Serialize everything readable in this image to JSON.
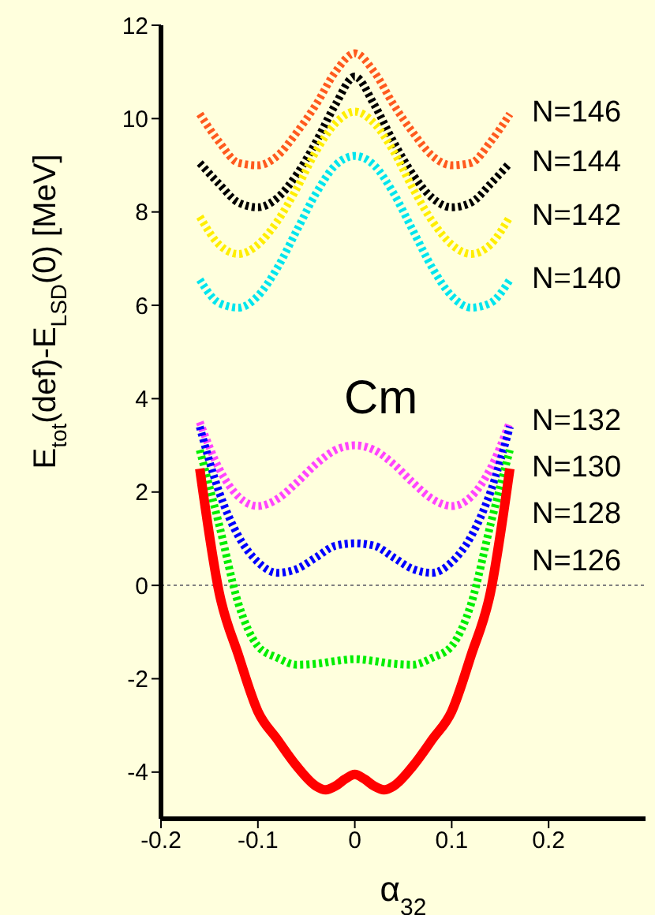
{
  "chart_data": {
    "type": "line",
    "xlabel": "α$_{32}$",
    "ylabel": "E$_{tot}$(def)-E$_{LSD}$(0) [MeV]",
    "annotations": [
      "Cm"
    ],
    "x": [
      -0.16,
      -0.14,
      -0.12,
      -0.1,
      -0.08,
      -0.06,
      -0.04,
      -0.02,
      0,
      0.02,
      0.04,
      0.06,
      0.08,
      0.1,
      0.12,
      0.14,
      0.16
    ],
    "series": [
      {
        "name": "N=146",
        "color": "#ff5a1e",
        "line_style": "dotted",
        "values": [
          10.1,
          9.5,
          9.05,
          9.0,
          9.2,
          9.7,
          10.3,
          11.0,
          11.4,
          11.0,
          10.3,
          9.7,
          9.2,
          9.0,
          9.05,
          9.5,
          10.1
        ]
      },
      {
        "name": "N=144",
        "color": "#000000",
        "line_style": "dotted",
        "values": [
          9.05,
          8.6,
          8.2,
          8.1,
          8.3,
          8.8,
          9.5,
          10.3,
          10.9,
          10.3,
          9.5,
          8.8,
          8.3,
          8.1,
          8.2,
          8.6,
          9.05
        ]
      },
      {
        "name": "N=142",
        "color": "#ffee00",
        "line_style": "dotted",
        "values": [
          7.9,
          7.3,
          7.1,
          7.3,
          7.8,
          8.5,
          9.3,
          9.9,
          10.15,
          9.9,
          9.3,
          8.5,
          7.8,
          7.3,
          7.1,
          7.3,
          7.9
        ]
      },
      {
        "name": "N=140",
        "color": "#00e5ee",
        "line_style": "dotted",
        "values": [
          6.55,
          6.05,
          5.95,
          6.2,
          6.8,
          7.6,
          8.4,
          9.0,
          9.2,
          9.0,
          8.4,
          7.6,
          6.8,
          6.2,
          5.95,
          6.05,
          6.55
        ]
      },
      {
        "name": "N=132",
        "color": "#ff44ff",
        "line_style": "dotted",
        "values": [
          3.5,
          2.5,
          1.9,
          1.7,
          1.85,
          2.2,
          2.6,
          2.9,
          3.0,
          2.9,
          2.6,
          2.2,
          1.85,
          1.7,
          1.9,
          2.5,
          3.5
        ]
      },
      {
        "name": "N=130",
        "color": "#0000ff",
        "line_style": "dotted",
        "values": [
          3.4,
          2.0,
          1.05,
          0.5,
          0.27,
          0.35,
          0.6,
          0.85,
          0.9,
          0.85,
          0.6,
          0.35,
          0.27,
          0.5,
          1.05,
          2.0,
          3.4
        ]
      },
      {
        "name": "N=128",
        "color": "#00ee00",
        "line_style": "dotted",
        "values": [
          2.9,
          1.3,
          -0.4,
          -1.3,
          -1.55,
          -1.7,
          -1.68,
          -1.62,
          -1.58,
          -1.62,
          -1.68,
          -1.7,
          -1.55,
          -1.3,
          -0.4,
          1.3,
          2.9
        ]
      },
      {
        "name": "N=126",
        "color": "#ff0000",
        "line_style": "solid",
        "x": [
          -0.16,
          -0.14,
          -0.12,
          -0.1,
          -0.08,
          -0.06,
          -0.04,
          -0.03,
          -0.02,
          -0.01,
          0,
          0.01,
          0.02,
          0.03,
          0.04,
          0.06,
          0.08,
          0.1,
          0.12,
          0.14,
          0.16
        ],
        "values": [
          2.5,
          -0.15,
          -1.5,
          -2.7,
          -3.3,
          -3.87,
          -4.3,
          -4.38,
          -4.3,
          -4.15,
          -4.05,
          -4.15,
          -4.3,
          -4.38,
          -4.3,
          -3.87,
          -3.3,
          -2.7,
          -1.5,
          -0.15,
          2.5
        ]
      }
    ],
    "ref_lines": [
      {
        "axis": "y",
        "value": 0,
        "color": "#808080",
        "line_style": "dotted"
      }
    ],
    "xlim": [
      -0.2,
      0.3
    ],
    "xticks": [
      -0.2,
      -0.1,
      0,
      0.1,
      0.2
    ],
    "ylim": [
      -5,
      12
    ],
    "yticks": [
      -4,
      -2,
      0,
      2,
      4,
      6,
      8,
      10,
      12
    ],
    "grid": false
  }
}
